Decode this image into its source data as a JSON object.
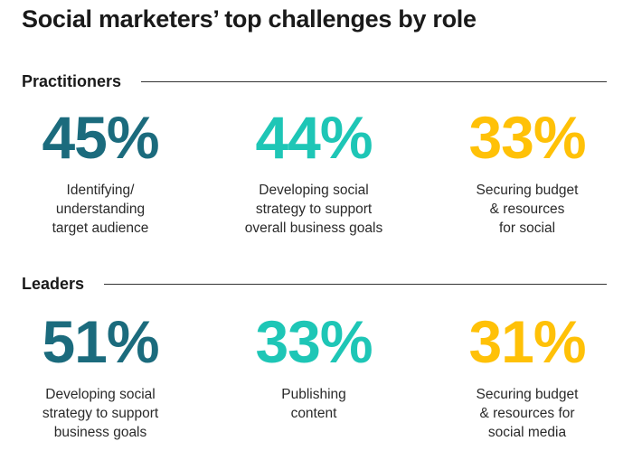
{
  "title": "Social marketers’ top challenges by role",
  "colors": {
    "dark_teal": "#1b6b7d",
    "teal": "#1ec6b6",
    "yellow": "#ffc107"
  },
  "chart_data": {
    "type": "table",
    "title": "Social marketers’ top challenges by role",
    "groups": [
      {
        "name": "Practitioners",
        "items": [
          {
            "value": "45%",
            "number": 45,
            "label": "Identifying/\nunderstanding\ntarget audience",
            "color": "#1b6b7d"
          },
          {
            "value": "44%",
            "number": 44,
            "label": "Developing social\nstrategy to support\noverall business goals",
            "color": "#1ec6b6"
          },
          {
            "value": "33%",
            "number": 33,
            "label": "Securing budget\n& resources\nfor social",
            "color": "#ffc107"
          }
        ]
      },
      {
        "name": "Leaders",
        "items": [
          {
            "value": "51%",
            "number": 51,
            "label": "Developing social\nstrategy to support\nbusiness goals",
            "color": "#1b6b7d"
          },
          {
            "value": "33%",
            "number": 33,
            "label": "Publishing\ncontent",
            "color": "#1ec6b6"
          },
          {
            "value": "31%",
            "number": 31,
            "label": "Securing budget\n& resources for\nsocial media",
            "color": "#ffc107"
          }
        ]
      }
    ]
  }
}
